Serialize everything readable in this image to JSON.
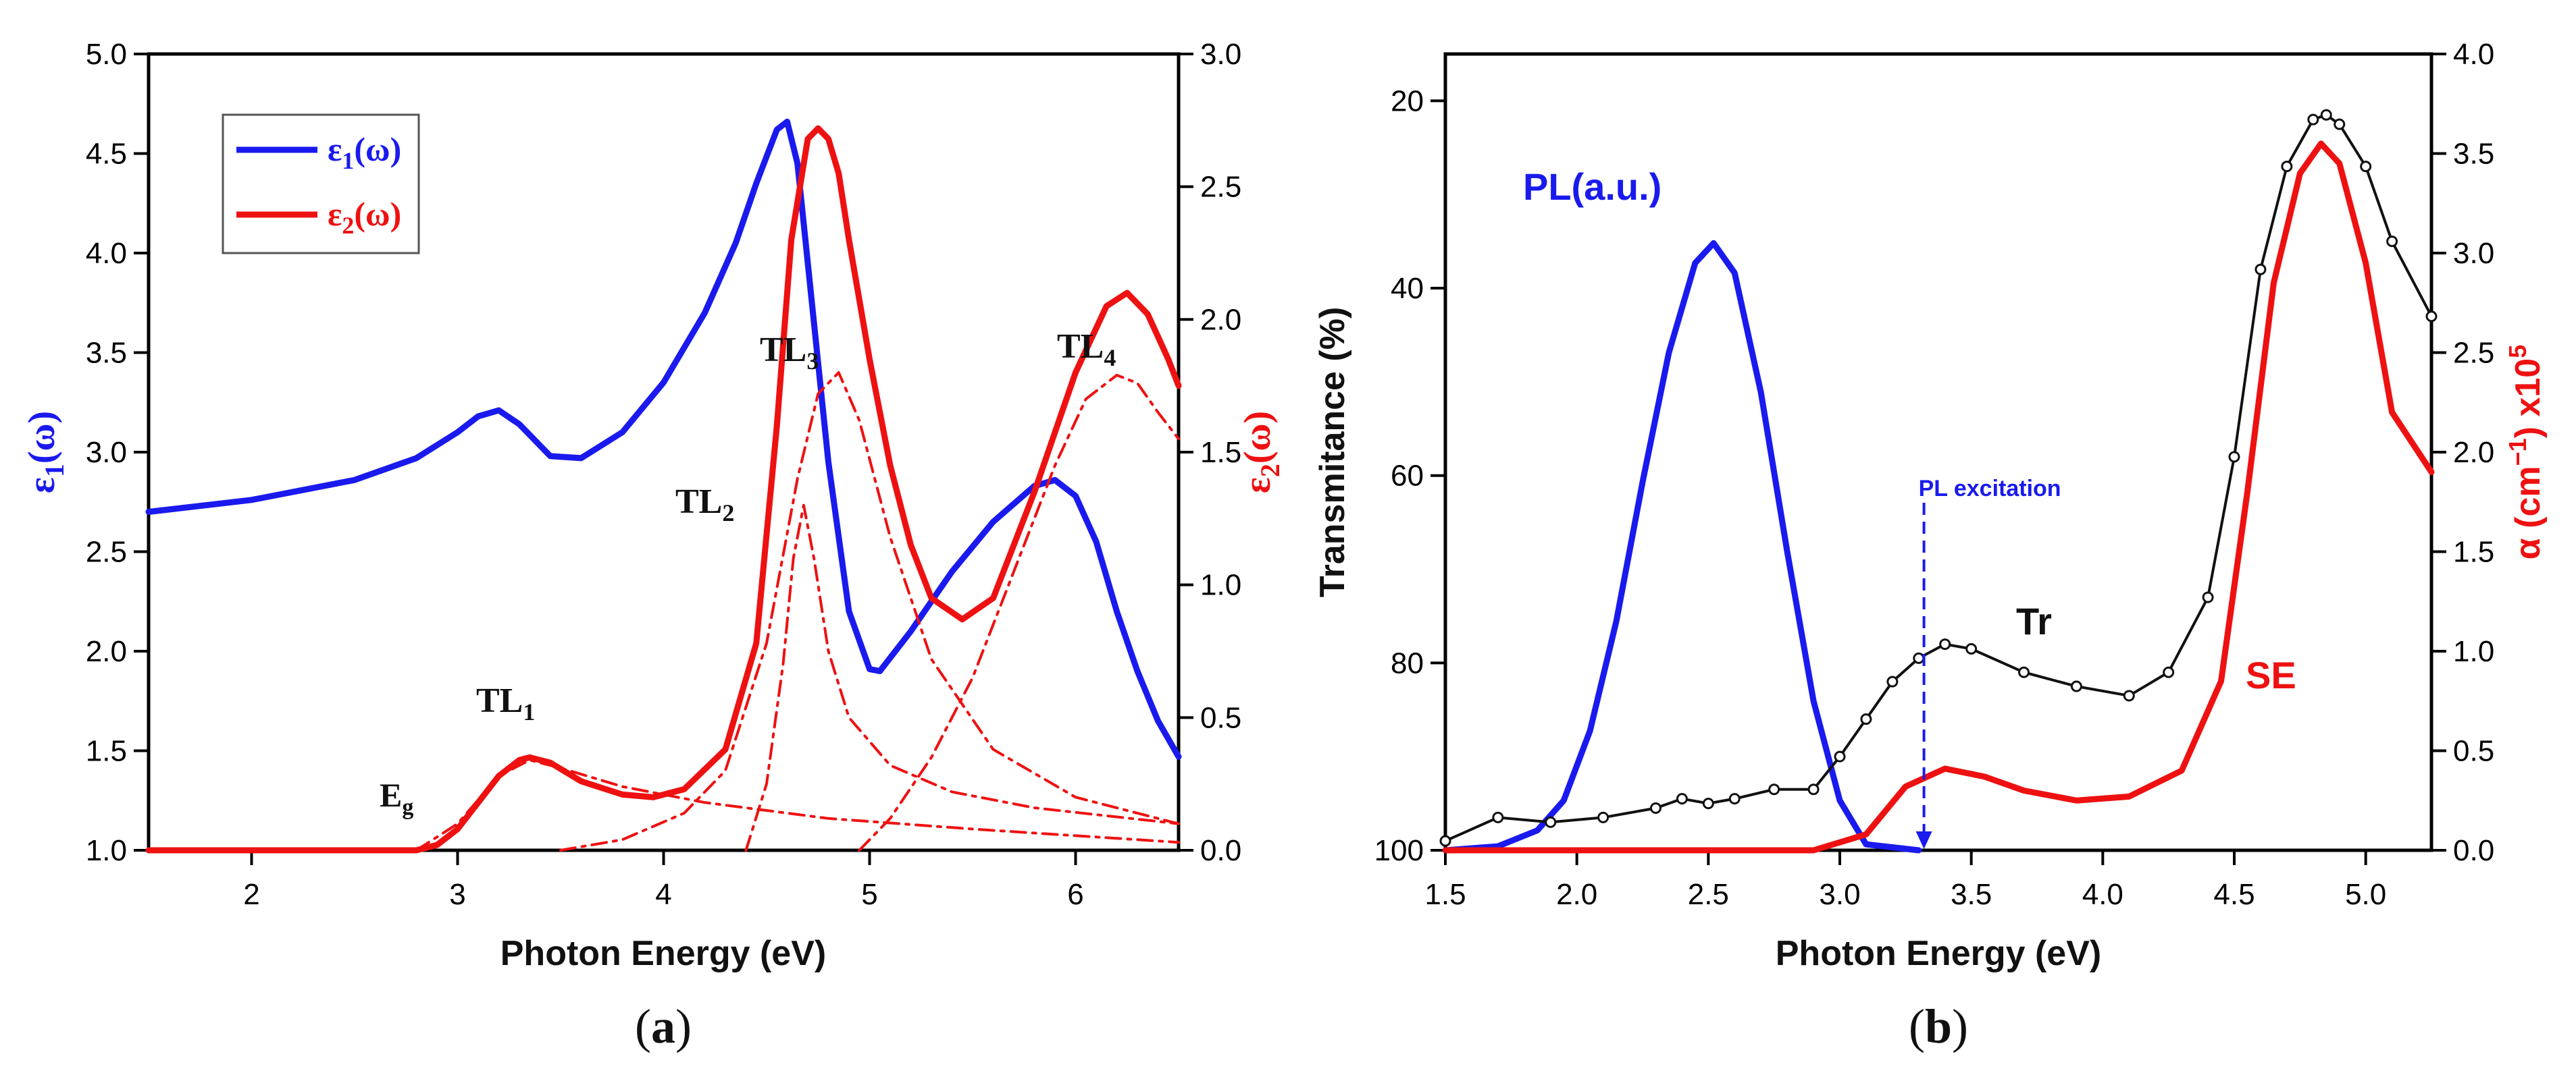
{
  "colors": {
    "blue": "#1a1aee",
    "red": "#ee1111",
    "black": "#111111"
  },
  "chart_data": [
    {
      "type": "line",
      "panel_label": "(a)",
      "xlabel": "Photon Energy (eV)",
      "ylabel_left": "ε1(ω)",
      "ylabel_right": "ε2(ω)",
      "xlim": [
        1.5,
        6.5
      ],
      "ylim_left": [
        1.0,
        5.0
      ],
      "ylim_right": [
        0.0,
        3.0
      ],
      "x_ticks": [
        "2",
        "3",
        "4",
        "5",
        "6"
      ],
      "y_left_ticks": [
        "1.0",
        "1.5",
        "2.0",
        "2.5",
        "3.0",
        "3.5",
        "4.0",
        "4.5",
        "5.0"
      ],
      "y_right_ticks": [
        "0.0",
        "0.5",
        "1.0",
        "1.5",
        "2.0",
        "2.5",
        "3.0"
      ],
      "legend": {
        "placement": "top-left",
        "entries": [
          "ε1(ω)",
          "ε2(ω)"
        ]
      },
      "annotations": [
        "Eg",
        "TL1",
        "TL2",
        "TL3",
        "TL4"
      ],
      "series": [
        {
          "name": "ε1(ω)",
          "axis": "left",
          "style": "solid",
          "color": "blue",
          "x": [
            1.5,
            2.0,
            2.5,
            2.8,
            3.0,
            3.1,
            3.2,
            3.3,
            3.45,
            3.6,
            3.8,
            4.0,
            4.2,
            4.35,
            4.45,
            4.55,
            4.6,
            4.65,
            4.72,
            4.8,
            4.9,
            5.0,
            5.05,
            5.2,
            5.4,
            5.6,
            5.8,
            5.9,
            6.0,
            6.1,
            6.2,
            6.3,
            6.4,
            6.5
          ],
          "y": [
            2.7,
            2.76,
            2.86,
            2.97,
            3.1,
            3.18,
            3.21,
            3.14,
            2.98,
            2.97,
            3.1,
            3.35,
            3.7,
            4.05,
            4.35,
            4.62,
            4.66,
            4.45,
            3.75,
            2.95,
            2.2,
            1.91,
            1.9,
            2.1,
            2.4,
            2.65,
            2.83,
            2.86,
            2.78,
            2.55,
            2.2,
            1.9,
            1.65,
            1.47
          ]
        },
        {
          "name": "ε2(ω)",
          "axis": "right",
          "style": "solid",
          "color": "red",
          "x": [
            1.5,
            2.5,
            2.8,
            2.9,
            3.0,
            3.1,
            3.2,
            3.3,
            3.35,
            3.45,
            3.6,
            3.8,
            3.95,
            4.1,
            4.3,
            4.45,
            4.55,
            4.62,
            4.7,
            4.75,
            4.8,
            4.85,
            4.9,
            5.0,
            5.1,
            5.2,
            5.3,
            5.45,
            5.6,
            5.8,
            6.0,
            6.15,
            6.25,
            6.35,
            6.45,
            6.5
          ],
          "y": [
            0.0,
            0.0,
            0.0,
            0.02,
            0.08,
            0.18,
            0.28,
            0.34,
            0.35,
            0.33,
            0.26,
            0.21,
            0.2,
            0.23,
            0.38,
            0.78,
            1.6,
            2.3,
            2.68,
            2.72,
            2.68,
            2.55,
            2.3,
            1.85,
            1.45,
            1.15,
            0.95,
            0.87,
            0.95,
            1.35,
            1.8,
            2.05,
            2.1,
            2.02,
            1.85,
            1.75
          ]
        },
        {
          "name": "TL1",
          "axis": "right",
          "style": "dashdot",
          "color": "red",
          "x": [
            2.8,
            3.0,
            3.2,
            3.35,
            3.5,
            3.8,
            4.2,
            4.8,
            5.5,
            6.5
          ],
          "y": [
            0.0,
            0.1,
            0.28,
            0.34,
            0.31,
            0.24,
            0.18,
            0.12,
            0.08,
            0.03
          ]
        },
        {
          "name": "TL2",
          "axis": "right",
          "style": "dashdot",
          "color": "red",
          "x": [
            4.4,
            4.5,
            4.58,
            4.63,
            4.68,
            4.73,
            4.8,
            4.9,
            5.1,
            5.4,
            5.8,
            6.5
          ],
          "y": [
            0.0,
            0.25,
            0.7,
            1.1,
            1.3,
            1.1,
            0.75,
            0.5,
            0.32,
            0.22,
            0.16,
            0.1
          ]
        },
        {
          "name": "TL3",
          "axis": "right",
          "style": "dashdot",
          "color": "red",
          "x": [
            3.5,
            3.8,
            4.1,
            4.3,
            4.5,
            4.65,
            4.75,
            4.85,
            4.95,
            5.1,
            5.3,
            5.6,
            6.0,
            6.5
          ],
          "y": [
            0.0,
            0.04,
            0.14,
            0.3,
            0.78,
            1.4,
            1.72,
            1.8,
            1.62,
            1.18,
            0.72,
            0.38,
            0.2,
            0.1
          ]
        },
        {
          "name": "TL4",
          "axis": "right",
          "style": "dashdot",
          "color": "red",
          "x": [
            4.95,
            5.1,
            5.3,
            5.5,
            5.7,
            5.9,
            6.05,
            6.2,
            6.3,
            6.4,
            6.5
          ],
          "y": [
            0.0,
            0.12,
            0.35,
            0.65,
            1.05,
            1.45,
            1.7,
            1.79,
            1.76,
            1.65,
            1.55
          ]
        }
      ]
    },
    {
      "type": "line",
      "panel_label": "(b)",
      "xlabel": "Photon Energy (eV)",
      "ylabel_left": "Transmitance (%)",
      "ylabel_right": "α (cm⁻¹) x10⁵",
      "xlim": [
        1.5,
        5.25
      ],
      "ylim_left": [
        100,
        15
      ],
      "left_axis_inverted": true,
      "ylim_right": [
        0.0,
        4.0
      ],
      "x_ticks": [
        "1.5",
        "2.0",
        "2.5",
        "3.0",
        "3.5",
        "4.0",
        "4.5",
        "5.0"
      ],
      "y_left_ticks": [
        "20",
        "40",
        "60",
        "80",
        "100"
      ],
      "y_right_ticks": [
        "0.0",
        "0.5",
        "1.0",
        "1.5",
        "2.0",
        "2.5",
        "3.0",
        "3.5",
        "4.0"
      ],
      "annotations": [
        "PL(a.u.)",
        "PL excitation",
        "Tr",
        "SE"
      ],
      "pl_excitation_x": 3.32,
      "series": [
        {
          "name": "PL(a.u.)",
          "axis": "right",
          "style": "solid",
          "color": "blue",
          "x": [
            1.5,
            1.7,
            1.85,
            1.95,
            2.05,
            2.15,
            2.25,
            2.35,
            2.45,
            2.52,
            2.6,
            2.7,
            2.8,
            2.9,
            3.0,
            3.1,
            3.3
          ],
          "y": [
            0.0,
            0.02,
            0.1,
            0.25,
            0.6,
            1.15,
            1.85,
            2.5,
            2.95,
            3.05,
            2.9,
            2.3,
            1.5,
            0.75,
            0.25,
            0.03,
            0.0
          ]
        },
        {
          "name": "Tr",
          "axis": "left",
          "style": "markers",
          "color": "black",
          "x": [
            1.5,
            1.7,
            1.9,
            2.1,
            2.3,
            2.4,
            2.5,
            2.6,
            2.75,
            2.9,
            3.0,
            3.1,
            3.2,
            3.3,
            3.4,
            3.5,
            3.7,
            3.9,
            4.1,
            4.25,
            4.4,
            4.5,
            4.6,
            4.7,
            4.8,
            4.85,
            4.9,
            5.0,
            5.1,
            5.25
          ],
          "y": [
            99,
            96.5,
            97,
            96.5,
            95.5,
            94.5,
            95,
            94.5,
            93.5,
            93.5,
            90,
            86,
            82,
            79.5,
            78,
            78.5,
            81,
            82.5,
            83.5,
            81,
            73,
            58,
            38,
            27,
            22,
            21.5,
            22.5,
            27,
            35,
            43
          ]
        },
        {
          "name": "SE",
          "axis": "right",
          "style": "solid",
          "color": "red",
          "x": [
            1.5,
            2.9,
            3.1,
            3.25,
            3.4,
            3.55,
            3.7,
            3.9,
            4.1,
            4.3,
            4.45,
            4.55,
            4.65,
            4.75,
            4.83,
            4.9,
            5.0,
            5.1,
            5.25
          ],
          "y": [
            0.0,
            0.0,
            0.08,
            0.32,
            0.41,
            0.37,
            0.3,
            0.25,
            0.27,
            0.4,
            0.85,
            1.8,
            2.85,
            3.4,
            3.55,
            3.45,
            2.95,
            2.2,
            1.9
          ]
        }
      ]
    }
  ]
}
